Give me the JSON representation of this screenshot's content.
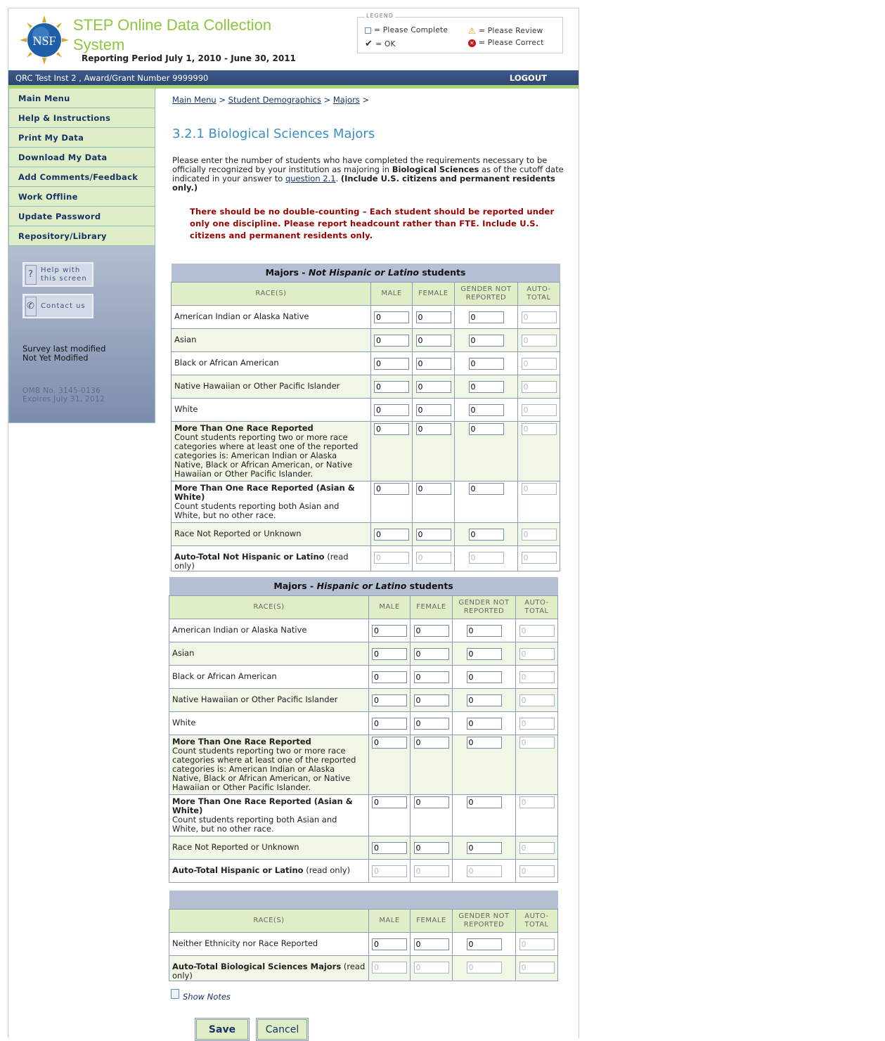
{
  "header": {
    "title": "STEP Online Data Collection System",
    "logo_text": "NSF",
    "period": "Reporting Period July 1, 2010 - June 30, 2011"
  },
  "legend": {
    "title": "LEGEND",
    "please_complete": "= Please Complete",
    "ok": "= OK",
    "please_review": "= Please Review",
    "please_correct": "= Please Correct"
  },
  "topbar": {
    "institution": "QRC Test Inst 2 , Award/Grant Number 9999990",
    "logout": "LOGOUT"
  },
  "sidebar": {
    "items": [
      "Main Menu",
      "Help & Instructions",
      "Print My Data",
      "Download My Data",
      "Add Comments/Feedback",
      "Work Offline",
      "Update Password",
      "Repository/Library"
    ],
    "help_button": "Help with this screen",
    "contact_button": "Contact us",
    "modified_label": "Survey last modified",
    "modified_value": "Not Yet Modified",
    "omb": "OMB No. 3145-0136",
    "expires": "Expires July 31, 2012"
  },
  "breadcrumb": [
    "Main Menu",
    "Student Demographics",
    "Majors"
  ],
  "page_title": "3.2.1 Biological Sciences Majors",
  "intro": {
    "p1": "Please enter the number of students who have completed the requirements necessary to be officially recognized by your institution as majoring in ",
    "bold1": "Biological Sciences",
    "p2": " as of the cutoff date indicated in your answer to ",
    "link": "question 2.1",
    "p3": ". ",
    "bold2": "(Include U.S. citizens and permanent residents only.)"
  },
  "warning": "There should be no double-counting – Each student should be reported under only one discipline. Please report headcount rather than FTE. Include U.S. citizens and permanent residents only.",
  "columns": [
    "RACE(S)",
    "MALE",
    "FEMALE",
    "GENDER NOT REPORTED",
    "AUTO-TOTAL"
  ],
  "tables": [
    {
      "title_pre": "Majors - ",
      "title_em": "Not Hispanic or Latino",
      "title_post": " students",
      "rows": [
        {
          "label": "American Indian or Alaska Native",
          "values": [
            "0",
            "0",
            "0",
            "0"
          ]
        },
        {
          "label": "Asian",
          "values": [
            "0",
            "0",
            "0",
            "0"
          ]
        },
        {
          "label": "Black or African American",
          "values": [
            "0",
            "0",
            "0",
            "0"
          ]
        },
        {
          "label": "Native Hawaiian or Other Pacific Islander",
          "values": [
            "0",
            "0",
            "0",
            "0"
          ]
        },
        {
          "label": "White",
          "values": [
            "0",
            "0",
            "0",
            "0"
          ]
        },
        {
          "label": "More Than One Race Reported",
          "desc": "Count students reporting two or more race categories where at least one of the reported categories is: American Indian or Alaska Native, Black or African American, or Native Hawaiian or Other Pacific Islander.",
          "values": [
            "0",
            "0",
            "0",
            "0"
          ]
        },
        {
          "label": "More Than One Race Reported (Asian & White)",
          "desc": "Count students reporting both Asian and White, but no other race.",
          "values": [
            "0",
            "0",
            "0",
            "0"
          ]
        },
        {
          "label": "Race Not Reported or Unknown",
          "values": [
            "0",
            "0",
            "0",
            "0"
          ]
        },
        {
          "label": "Auto-Total Not Hispanic or Latino",
          "suffix": " (read only)",
          "readonly": true,
          "values": [
            "0",
            "0",
            "0",
            "0"
          ]
        }
      ]
    },
    {
      "title_pre": "Majors - ",
      "title_em": "Hispanic or Latino",
      "title_post": " students",
      "rows": [
        {
          "label": "American Indian or Alaska Native",
          "values": [
            "0",
            "0",
            "0",
            "0"
          ]
        },
        {
          "label": "Asian",
          "values": [
            "0",
            "0",
            "0",
            "0"
          ]
        },
        {
          "label": "Black or African American",
          "values": [
            "0",
            "0",
            "0",
            "0"
          ]
        },
        {
          "label": "Native Hawaiian or Other Pacific Islander",
          "values": [
            "0",
            "0",
            "0",
            "0"
          ]
        },
        {
          "label": "White",
          "values": [
            "0",
            "0",
            "0",
            "0"
          ]
        },
        {
          "label": "More Than One Race Reported",
          "desc": "Count students reporting two or more race categories where at least one of the reported categories is: American Indian or Alaska Native, Black or African American, or Native Hawaiian or Other Pacific Islander.",
          "values": [
            "0",
            "0",
            "0",
            "0"
          ]
        },
        {
          "label": "More Than One Race Reported (Asian & White)",
          "desc": "Count students reporting both Asian and White, but no other race.",
          "values": [
            "0",
            "0",
            "0",
            "0"
          ]
        },
        {
          "label": "Race Not Reported or Unknown",
          "values": [
            "0",
            "0",
            "0",
            "0"
          ]
        },
        {
          "label": "Auto-Total Hispanic or Latino",
          "suffix": " (read only)",
          "readonly": true,
          "values": [
            "0",
            "0",
            "0",
            "0"
          ]
        }
      ]
    },
    {
      "title_pre": "",
      "title_em": "",
      "title_post": "",
      "rows": [
        {
          "label": "Neither Ethnicity nor Race Reported",
          "plain": true,
          "values": [
            "0",
            "0",
            "0",
            "0"
          ]
        },
        {
          "label": "Auto-Total Biological Sciences Majors",
          "suffix": " (read only)",
          "readonly": true,
          "values": [
            "0",
            "0",
            "0",
            "0"
          ]
        }
      ]
    }
  ],
  "show_notes": "Show Notes",
  "save": "Save",
  "cancel": "Cancel",
  "colors": {
    "accent_green": "#8cc63f",
    "nav_blue": "#2d4674",
    "warning_red": "#9b0000",
    "header_bg": "#b4bfd3",
    "row_green": "#e0eec8"
  }
}
